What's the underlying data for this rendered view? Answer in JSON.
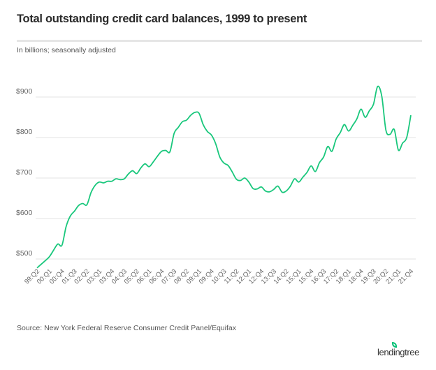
{
  "chart_data": {
    "type": "line",
    "title": "Total outstanding credit card balances, 1999 to present",
    "subtitle": "In billions; seasonally adjusted",
    "source": "Source: New York Federal Reserve Consumer Credit Panel/Equifax",
    "xlabel": "",
    "ylabel": "",
    "ylim": [
      470,
      940
    ],
    "y_ticks": [
      500,
      600,
      700,
      800,
      900
    ],
    "y_tick_labels": [
      "$500",
      "$600",
      "$700",
      "$800",
      "$900"
    ],
    "grid": "horizontal",
    "line_color": "#19c77c",
    "x_tick_labels": [
      "99:Q2",
      "00:Q1",
      "00:Q4",
      "01:Q3",
      "02:Q2",
      "03:Q1",
      "03:Q4",
      "04:Q3",
      "05:Q2",
      "06:Q1",
      "06:Q4",
      "07:Q3",
      "08:Q2",
      "09:Q1",
      "09:Q4",
      "10:Q3",
      "11:Q2",
      "12:Q1",
      "12:Q4",
      "13:Q3",
      "14:Q2",
      "15:Q1",
      "15:Q4",
      "16:Q3",
      "17:Q2",
      "18:Q1",
      "18:Q4",
      "19:Q3",
      "20:Q2",
      "21:Q1",
      "21:Q4"
    ],
    "x_tick_every": 3,
    "series": [
      {
        "values": [
          478,
          487,
          496,
          506,
          522,
          537,
          534,
          580,
          606,
          618,
          632,
          637,
          634,
          664,
          682,
          690,
          688,
          692,
          692,
          698,
          696,
          698,
          710,
          718,
          711,
          725,
          735,
          728,
          740,
          754,
          766,
          768,
          765,
          810,
          825,
          839,
          843,
          855,
          862,
          860,
          832,
          815,
          806,
          785,
          752,
          737,
          731,
          715,
          697,
          694,
          700,
          690,
          674,
          673,
          678,
          668,
          666,
          672,
          680,
          665,
          668,
          680,
          698,
          690,
          702,
          714,
          730,
          716,
          738,
          752,
          778,
          766,
          796,
          812,
          832,
          816,
          830,
          846,
          870,
          850,
          866,
          882,
          926,
          902,
          818,
          808,
          820,
          769,
          786,
          800,
          855
        ]
      }
    ]
  },
  "brand": {
    "logo_text": "lendingtree",
    "accent": "#08c177"
  }
}
